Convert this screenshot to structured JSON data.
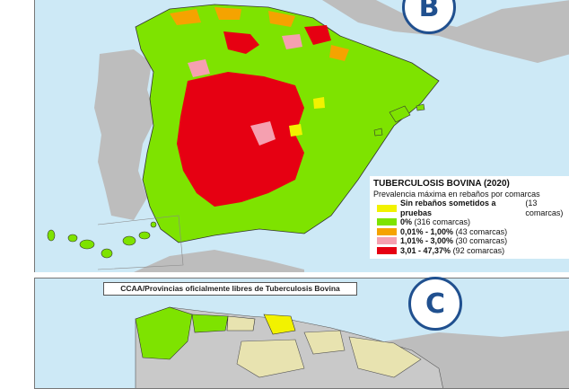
{
  "panel_b": {
    "badge": "B",
    "legend": {
      "title": "TUBERCULOSIS BOVINA (2020)",
      "subtitle": "Prevalencia máxima en rebaños por comarcas",
      "items": [
        {
          "color": "#f2f200",
          "label": "Sin rebaños sometidos a pruebas",
          "count": "(13 comarcas)"
        },
        {
          "color": "#7ee300",
          "label": "0%",
          "count": "(316 comarcas)"
        },
        {
          "color": "#f5a300",
          "label": "0,01% - 1,00%",
          "count": "(43 comarcas)"
        },
        {
          "color": "#f5a0b0",
          "label": "1,01% - 3,00%",
          "count": "(30 comarcas)"
        },
        {
          "color": "#e60012",
          "label": "3,01 - 47,37%",
          "count": "(92 comarcas)"
        }
      ]
    }
  },
  "panel_c": {
    "badge": "C",
    "title": "CCAA/Provincias oficialmente libres de Tuberculosis Bovina"
  },
  "colors": {
    "sea": "#cde9f6",
    "land_other": "#bdbdbd",
    "badge_blue": "#20508f",
    "green": "#7ee300",
    "red": "#e60012",
    "orange": "#f5a300",
    "pink": "#f5a0b0",
    "yellow": "#f2f200",
    "khaki": "#e8e3b0",
    "grey": "#c9c9c9"
  }
}
